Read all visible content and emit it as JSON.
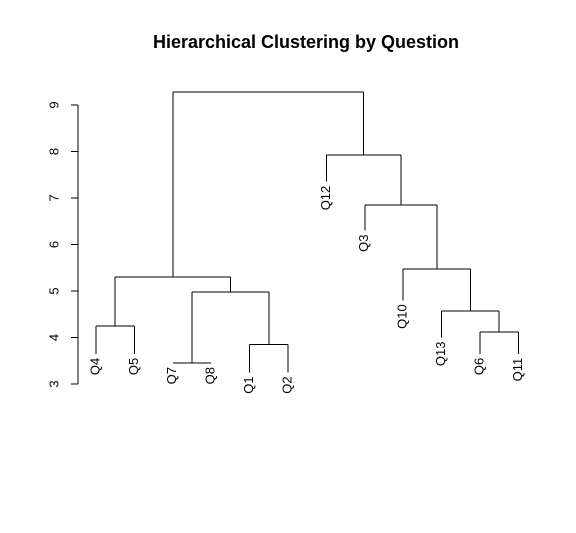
{
  "chart_data": {
    "type": "dendrogram",
    "title": "Hierarchical Clustering by Question",
    "xlabel": "",
    "ylabel": "",
    "ylim": [
      3,
      9
    ],
    "yticks": [
      3,
      4,
      5,
      6,
      7,
      8,
      9
    ],
    "leaf_order": [
      "Q4",
      "Q5",
      "Q7",
      "Q8",
      "Q1",
      "Q2",
      "Q12",
      "Q3",
      "Q10",
      "Q13",
      "Q6",
      "Q11"
    ],
    "leaves": {
      "Q4": 3.65,
      "Q5": 3.65,
      "Q7": 3.45,
      "Q8": 3.45,
      "Q1": 3.25,
      "Q2": 3.25,
      "Q12": 7.35,
      "Q3": 6.3,
      "Q10": 4.8,
      "Q13": 4.0,
      "Q6": 3.65,
      "Q11": 3.65
    },
    "merges": [
      {
        "left": "Q4",
        "right": "Q5",
        "height": 4.25
      },
      {
        "left": "Q7",
        "right": "Q8",
        "height": 3.45
      },
      {
        "left": "Q1",
        "right": "Q2",
        "height": 3.85
      },
      {
        "left": "Q7+Q8",
        "right": "Q1+Q2",
        "height": 4.98
      },
      {
        "left": "Q4+Q5",
        "right": "Q7+Q8+Q1+Q2",
        "height": 5.3
      },
      {
        "left": "Q6",
        "right": "Q11",
        "height": 4.12
      },
      {
        "left": "Q13",
        "right": "Q6+Q11",
        "height": 4.57
      },
      {
        "left": "Q10",
        "right": "Q13+Q6+Q11",
        "height": 5.47
      },
      {
        "left": "Q3",
        "right": "Q10+Q13+Q6+Q11",
        "height": 6.85
      },
      {
        "left": "Q12",
        "right": "Q3+Q10+Q13+Q6+Q11",
        "height": 7.93
      },
      {
        "left": "Q4+Q5+Q7+Q8+Q1+Q2",
        "right": "Q12+Q3+Q10+Q13+Q6+Q11",
        "height": 9.28
      }
    ],
    "grid": false
  }
}
